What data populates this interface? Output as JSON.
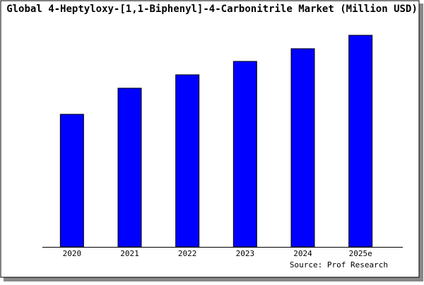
{
  "chart_data": {
    "type": "bar",
    "title": "Global 4-Heptyloxy-[1,1-Biphenyl]-4-Carbonitrile Market (Million USD)",
    "categories": [
      "2020",
      "2021",
      "2022",
      "2023",
      "2024",
      "2025e"
    ],
    "values": [
      188,
      225,
      244,
      263,
      281,
      300
    ],
    "color": "#0000ff",
    "ylim": [
      0,
      332
    ],
    "source": "Source: Prof Research"
  }
}
